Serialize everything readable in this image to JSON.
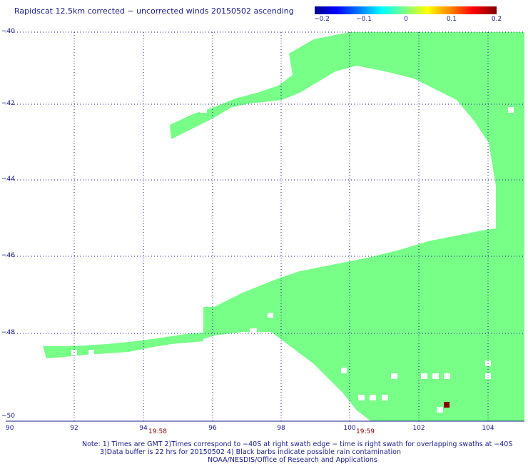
{
  "title": "Rapidscat 12.5km corrected − uncorrected winds 20150502 ascending",
  "colorbar": {
    "labels": [
      "−0.2",
      "−0.1",
      "0",
      "0.1",
      "0.2"
    ]
  },
  "axes": {
    "y_ticks": [
      "−40",
      "−42",
      "−44",
      "−46",
      "−48",
      "−50"
    ],
    "x_ticks": [
      "90",
      "92",
      "94",
      "96",
      "98",
      "100",
      "102",
      "104"
    ]
  },
  "swath_times": [
    "19:58",
    "19:59"
  ],
  "notes": {
    "line1": "Note: 1) Times are GMT 2)Times correspond to −40S at right swath edge − time is right swath for overlapping swaths at −40S",
    "line2": "3)Data buffer is 22 hrs for 20150502 4) Black barbs indicate possible rain contamination",
    "line3": "NOAA/NESDIS/Office of Research and Applications"
  },
  "colors": {
    "data_green": "#77ff88",
    "outlier_red": "#8b0000",
    "grid": "#1a1a8c"
  }
}
